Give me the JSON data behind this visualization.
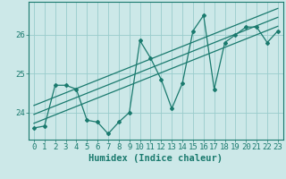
{
  "background_color": "#cce8e8",
  "grid_color": "#99cccc",
  "line_color": "#1a7a6e",
  "xlabel": "Humidex (Indice chaleur)",
  "xlim": [
    -0.5,
    23.5
  ],
  "ylim": [
    23.3,
    26.85
  ],
  "yticks": [
    24,
    25,
    26
  ],
  "xticks": [
    0,
    1,
    2,
    3,
    4,
    5,
    6,
    7,
    8,
    9,
    10,
    11,
    12,
    13,
    14,
    15,
    16,
    17,
    18,
    19,
    20,
    21,
    22,
    23
  ],
  "data_x": [
    0,
    1,
    2,
    3,
    4,
    5,
    6,
    7,
    8,
    9,
    10,
    11,
    12,
    13,
    14,
    15,
    16,
    17,
    18,
    19,
    20,
    21,
    22,
    23
  ],
  "data_y": [
    23.6,
    23.65,
    24.7,
    24.7,
    24.6,
    23.8,
    23.75,
    23.45,
    23.75,
    24.0,
    25.85,
    25.4,
    24.85,
    24.1,
    24.75,
    26.1,
    26.5,
    24.6,
    25.8,
    26.0,
    26.2,
    26.2,
    25.8,
    26.1
  ],
  "reg_line1_x": [
    0,
    23
  ],
  "reg_line1_y": [
    23.72,
    26.22
  ],
  "reg_line2_x": [
    0,
    23
  ],
  "reg_line2_y": [
    23.95,
    26.45
  ],
  "reg_line3_x": [
    0,
    23
  ],
  "reg_line3_y": [
    24.18,
    26.68
  ],
  "tick_fontsize": 6.5,
  "label_fontsize": 7.5
}
